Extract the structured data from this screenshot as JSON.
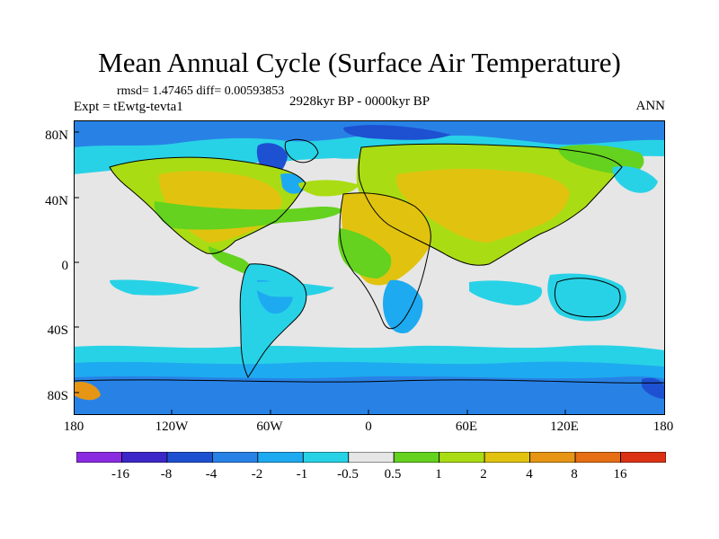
{
  "header": {
    "title": "Mean Annual Cycle (Surface Air Temperature)",
    "stats": "rmsd= 1.47465 diff= 0.00593853",
    "experiment": "Expt = tEwtg-tevta1",
    "period": "2928kyr BP - 0000kyr BP",
    "season": "ANN"
  },
  "axes": {
    "lat_labels": [
      "80N",
      "40N",
      "0",
      "40S",
      "80S"
    ],
    "lon_labels": [
      "180",
      "120W",
      "60W",
      "0",
      "60E",
      "120E",
      "180"
    ]
  },
  "colorbar": {
    "labels": [
      "-16",
      "-8",
      "-4",
      "-2",
      "-1",
      "-0.5",
      "0.5",
      "1",
      "2",
      "4",
      "8",
      "16"
    ],
    "colors": [
      "#8a2be2",
      "#3c28c8",
      "#1e50d2",
      "#2882e6",
      "#1eaaf0",
      "#28d2e6",
      "#e6e6e6",
      "#64d21e",
      "#aadc14",
      "#e1c30f",
      "#e69614",
      "#e66e14",
      "#dc3214"
    ]
  }
}
